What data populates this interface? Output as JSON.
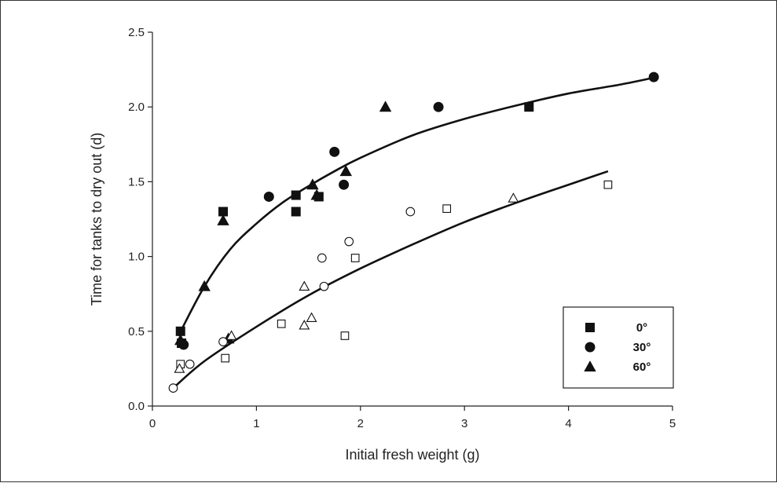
{
  "chart_data": {
    "type": "scatter",
    "xlabel": "Initial fresh weight (g)",
    "ylabel": "Time for tanks to dry out (d)",
    "xlim": [
      0,
      5
    ],
    "ylim": [
      0,
      2.5
    ],
    "xticks": [
      0,
      1,
      2,
      3,
      4,
      5
    ],
    "yticks": [
      0.0,
      0.5,
      1.0,
      1.5,
      2.0,
      2.5
    ],
    "ytick_labels": [
      "0.0",
      "0.5",
      "1.0",
      "1.5",
      "2.0",
      "2.5"
    ],
    "grid": false,
    "legend": {
      "position": "lower-right",
      "entries": [
        {
          "label": "0°",
          "marker": "square",
          "fill": "filled"
        },
        {
          "label": "30°",
          "marker": "circle",
          "fill": "filled"
        },
        {
          "label": "60°",
          "marker": "triangle",
          "fill": "filled"
        }
      ]
    },
    "series": [
      {
        "label": "0°",
        "marker": "square",
        "fill": "filled",
        "points": [
          [
            0.27,
            0.5
          ],
          [
            0.28,
            0.42
          ],
          [
            0.68,
            1.3
          ],
          [
            1.38,
            1.41
          ],
          [
            1.38,
            1.3
          ],
          [
            1.6,
            1.4
          ],
          [
            3.62,
            2.0
          ]
        ]
      },
      {
        "label": "30°",
        "marker": "circle",
        "fill": "filled",
        "points": [
          [
            0.3,
            0.41
          ],
          [
            1.12,
            1.4
          ],
          [
            1.75,
            1.7
          ],
          [
            1.84,
            1.48
          ],
          [
            2.75,
            2.0
          ],
          [
            4.82,
            2.2
          ]
        ]
      },
      {
        "label": "60°",
        "marker": "triangle",
        "fill": "filled",
        "points": [
          [
            0.27,
            0.44
          ],
          [
            0.5,
            0.8
          ],
          [
            0.68,
            1.24
          ],
          [
            0.73,
            0.45
          ],
          [
            1.54,
            1.48
          ],
          [
            1.58,
            1.41
          ],
          [
            1.86,
            1.57
          ],
          [
            2.24,
            2.0
          ]
        ]
      },
      {
        "marker": "square",
        "fill": "open",
        "points": [
          [
            0.27,
            0.28
          ],
          [
            0.7,
            0.32
          ],
          [
            1.24,
            0.55
          ],
          [
            1.85,
            0.47
          ],
          [
            1.95,
            0.99
          ],
          [
            2.83,
            1.32
          ],
          [
            4.38,
            1.48
          ]
        ]
      },
      {
        "marker": "circle",
        "fill": "open",
        "points": [
          [
            0.2,
            0.12
          ],
          [
            0.36,
            0.28
          ],
          [
            0.68,
            0.43
          ],
          [
            1.63,
            0.99
          ],
          [
            1.65,
            0.8
          ],
          [
            1.89,
            1.1
          ],
          [
            2.48,
            1.3
          ]
        ]
      },
      {
        "marker": "triangle",
        "fill": "open",
        "points": [
          [
            0.26,
            0.25
          ],
          [
            0.76,
            0.47
          ],
          [
            1.46,
            0.8
          ],
          [
            1.46,
            0.54
          ],
          [
            1.53,
            0.59
          ],
          [
            3.47,
            1.39
          ]
        ]
      }
    ],
    "curves": [
      {
        "label": "fit-filled",
        "points": [
          [
            0.25,
            0.47
          ],
          [
            0.5,
            0.8
          ],
          [
            0.75,
            1.05
          ],
          [
            1.0,
            1.22
          ],
          [
            1.25,
            1.36
          ],
          [
            1.5,
            1.47
          ],
          [
            1.75,
            1.57
          ],
          [
            2.0,
            1.66
          ],
          [
            2.5,
            1.81
          ],
          [
            3.0,
            1.92
          ],
          [
            3.5,
            2.01
          ],
          [
            4.0,
            2.09
          ],
          [
            4.5,
            2.15
          ],
          [
            4.85,
            2.2
          ]
        ]
      },
      {
        "label": "fit-open",
        "points": [
          [
            0.2,
            0.12
          ],
          [
            0.5,
            0.3
          ],
          [
            1.0,
            0.53
          ],
          [
            1.5,
            0.74
          ],
          [
            2.0,
            0.92
          ],
          [
            2.5,
            1.08
          ],
          [
            3.0,
            1.23
          ],
          [
            3.5,
            1.36
          ],
          [
            4.0,
            1.48
          ],
          [
            4.38,
            1.57
          ]
        ]
      }
    ]
  }
}
